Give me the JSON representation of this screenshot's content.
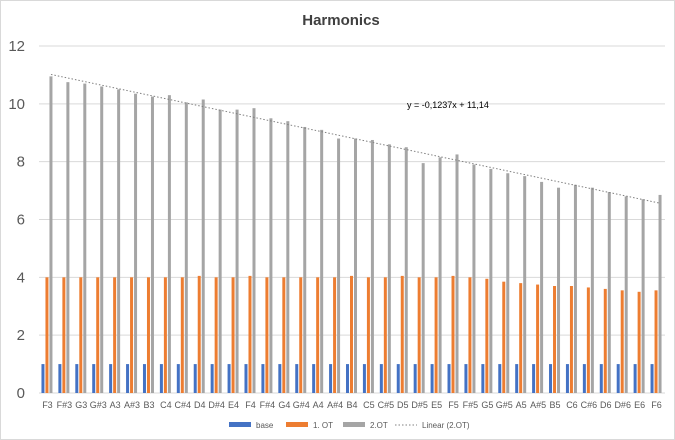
{
  "chart_data": {
    "type": "bar",
    "title": "Harmonics",
    "xlabel": "",
    "ylabel": "",
    "ylim": [
      0,
      12
    ],
    "yticks": [
      0,
      2,
      4,
      6,
      8,
      10,
      12
    ],
    "grid": true,
    "legend_position": "bottom",
    "categories": [
      "F3",
      "F#3",
      "G3",
      "G#3",
      "A3",
      "A#3",
      "B3",
      "C4",
      "C#4",
      "D4",
      "D#4",
      "E4",
      "F4",
      "F#4",
      "G4",
      "G#4",
      "A4",
      "A#4",
      "B4",
      "C5",
      "C#5",
      "D5",
      "D#5",
      "E5",
      "F5",
      "F#5",
      "G5",
      "G#5",
      "A5",
      "A#5",
      "B5",
      "C6",
      "C#6",
      "D6",
      "D#6",
      "E6",
      "F6"
    ],
    "series": [
      {
        "name": "base",
        "color": "#4472c4",
        "values": [
          1,
          1,
          1,
          1,
          1,
          1,
          1,
          1,
          1,
          1,
          1,
          1,
          1,
          1,
          1,
          1,
          1,
          1,
          1,
          1,
          1,
          1,
          1,
          1,
          1,
          1,
          1,
          1,
          1,
          1,
          1,
          1,
          1,
          1,
          1,
          1,
          1
        ]
      },
      {
        "name": "1. OT",
        "color": "#ed7d31",
        "values": [
          4,
          4,
          4,
          4,
          4,
          4,
          4,
          4,
          4,
          4.05,
          4,
          4,
          4.05,
          4,
          4,
          4,
          4,
          4,
          4.05,
          4,
          4,
          4.05,
          4,
          4,
          4.05,
          4,
          3.95,
          3.85,
          3.8,
          3.75,
          3.7,
          3.7,
          3.65,
          3.6,
          3.55,
          3.5,
          3.55
        ]
      },
      {
        "name": "2.OT",
        "color": "#a5a5a5",
        "values": [
          10.95,
          10.75,
          10.7,
          10.6,
          10.5,
          10.35,
          10.25,
          10.3,
          10.05,
          10.15,
          9.8,
          9.8,
          9.85,
          9.5,
          9.4,
          9.2,
          9.1,
          8.8,
          8.8,
          8.75,
          8.6,
          8.5,
          7.95,
          8.15,
          8.25,
          7.9,
          7.75,
          7.6,
          7.5,
          7.3,
          7.1,
          7.2,
          7.1,
          6.95,
          6.8,
          6.7,
          6.85
        ]
      }
    ],
    "trendline": {
      "name": "Linear (2.OT)",
      "series": "2.OT",
      "equation": "y = -0,1237x + 11,14",
      "slope": -0.1237,
      "intercept": 11.14,
      "color": "#a5a5a5",
      "style": "dotted"
    }
  }
}
